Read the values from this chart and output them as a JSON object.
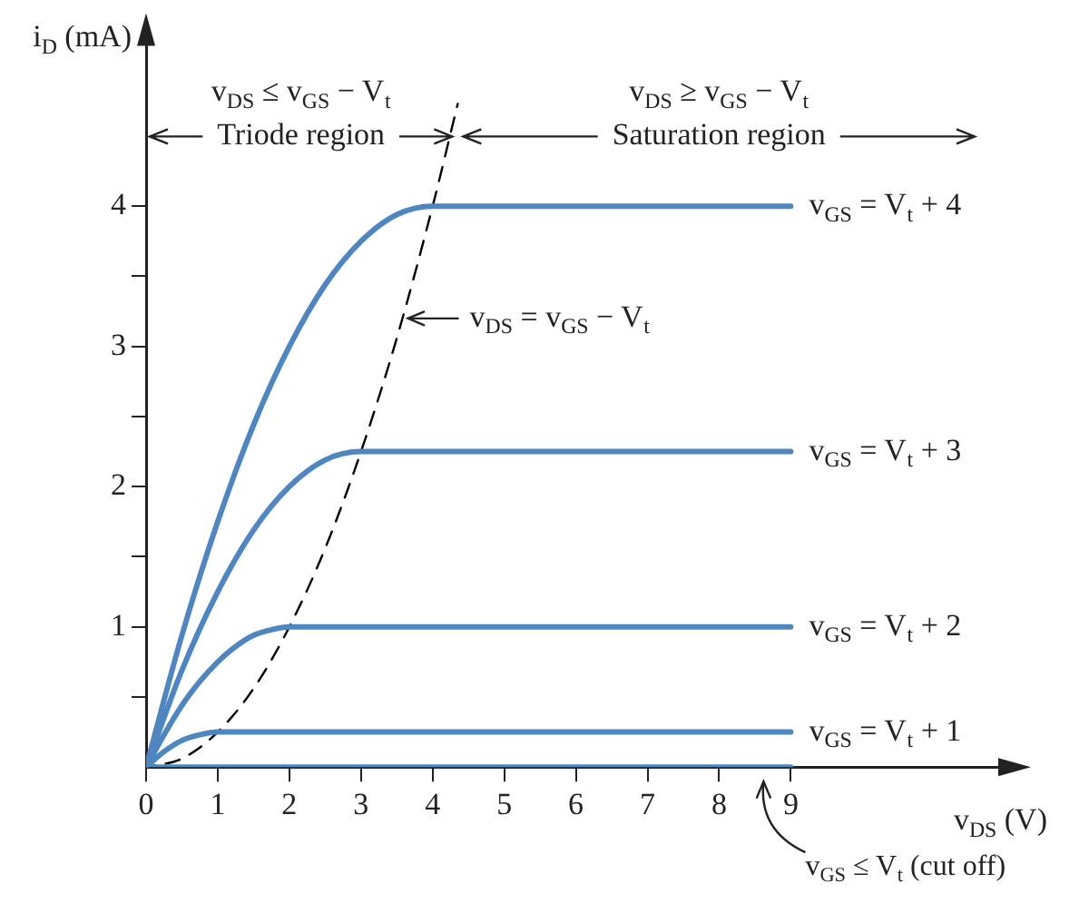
{
  "chart_data": {
    "type": "line",
    "xlabel": "v$_{DS}$ (V)",
    "ylabel": "i$_{D}$ (mA)",
    "xlim": [
      0,
      12.2
    ],
    "xticks": [
      0,
      1,
      2,
      3,
      4,
      5,
      6,
      7,
      8,
      9
    ],
    "ylim": [
      0,
      5.3
    ],
    "yticks": [
      {
        "value": 0.5,
        "label": null
      },
      1,
      {
        "value": 1.5,
        "label": null
      },
      2,
      {
        "value": 2.5,
        "label": null
      },
      3,
      {
        "value": 3.5,
        "label": null
      },
      4
    ],
    "grid": false,
    "legend": false,
    "marker": "none",
    "line_style": "solid",
    "annotations": [
      "v$_{DS}$ ≤ v$_{GS}$ − V$_{t}$",
      "v$_{DS}$ ≥ v$_{GS}$ − V$_{t}$",
      "Triode region",
      "Saturation region",
      {
        "text": "v$_{DS}$ = v$_{GS}$ − V$_{t}$",
        "x": 3.58,
        "y": 3.2
      }
    ],
    "series": [
      {
        "name": "v$_{GS}$ ≤ V$_{t}$ (cut off)",
        "color": "#4f86c0",
        "x": [
          0,
          9
        ],
        "values": [
          0,
          0
        ]
      },
      {
        "name": "v$_{GS}$ = V$_{t}$ + 1",
        "color": "#4f86c0",
        "x": [
          0,
          0.25,
          0.5,
          0.75,
          1,
          9
        ],
        "values": [
          0,
          0.11,
          0.19,
          0.23,
          0.25,
          0.25
        ]
      },
      {
        "name": "v$_{GS}$ = V$_{t}$ + 2",
        "color": "#4f86c0",
        "x": [
          0,
          0.25,
          0.5,
          0.75,
          1,
          1.25,
          1.5,
          1.75,
          2,
          9
        ],
        "values": [
          0,
          0.23,
          0.44,
          0.61,
          0.75,
          0.86,
          0.94,
          0.98,
          1,
          1
        ]
      },
      {
        "name": "v$_{GS}$ = V$_{t}$ + 3",
        "color": "#4f86c0",
        "x": [
          0,
          0.5,
          1,
          1.5,
          2,
          2.5,
          3,
          9
        ],
        "values": [
          0,
          0.69,
          1.25,
          1.69,
          2,
          2.19,
          2.25,
          2.25
        ]
      },
      {
        "name": "v$_{GS}$ = V$_{t}$ + 4",
        "color": "#4f86c0",
        "x": [
          0,
          0.5,
          1,
          1.5,
          2,
          2.5,
          3,
          3.5,
          4,
          9
        ],
        "values": [
          0,
          0.94,
          1.75,
          2.44,
          3,
          3.44,
          3.75,
          3.94,
          4,
          4
        ]
      },
      {
        "color": "#000000",
        "line_style": "dashed",
        "x": [
          0,
          0.5,
          1,
          1.5,
          2,
          2.5,
          3,
          3.5,
          4,
          4.35
        ],
        "values": [
          0,
          0.06,
          0.25,
          0.56,
          1,
          1.56,
          2.25,
          3.06,
          4,
          4.73
        ]
      }
    ]
  }
}
